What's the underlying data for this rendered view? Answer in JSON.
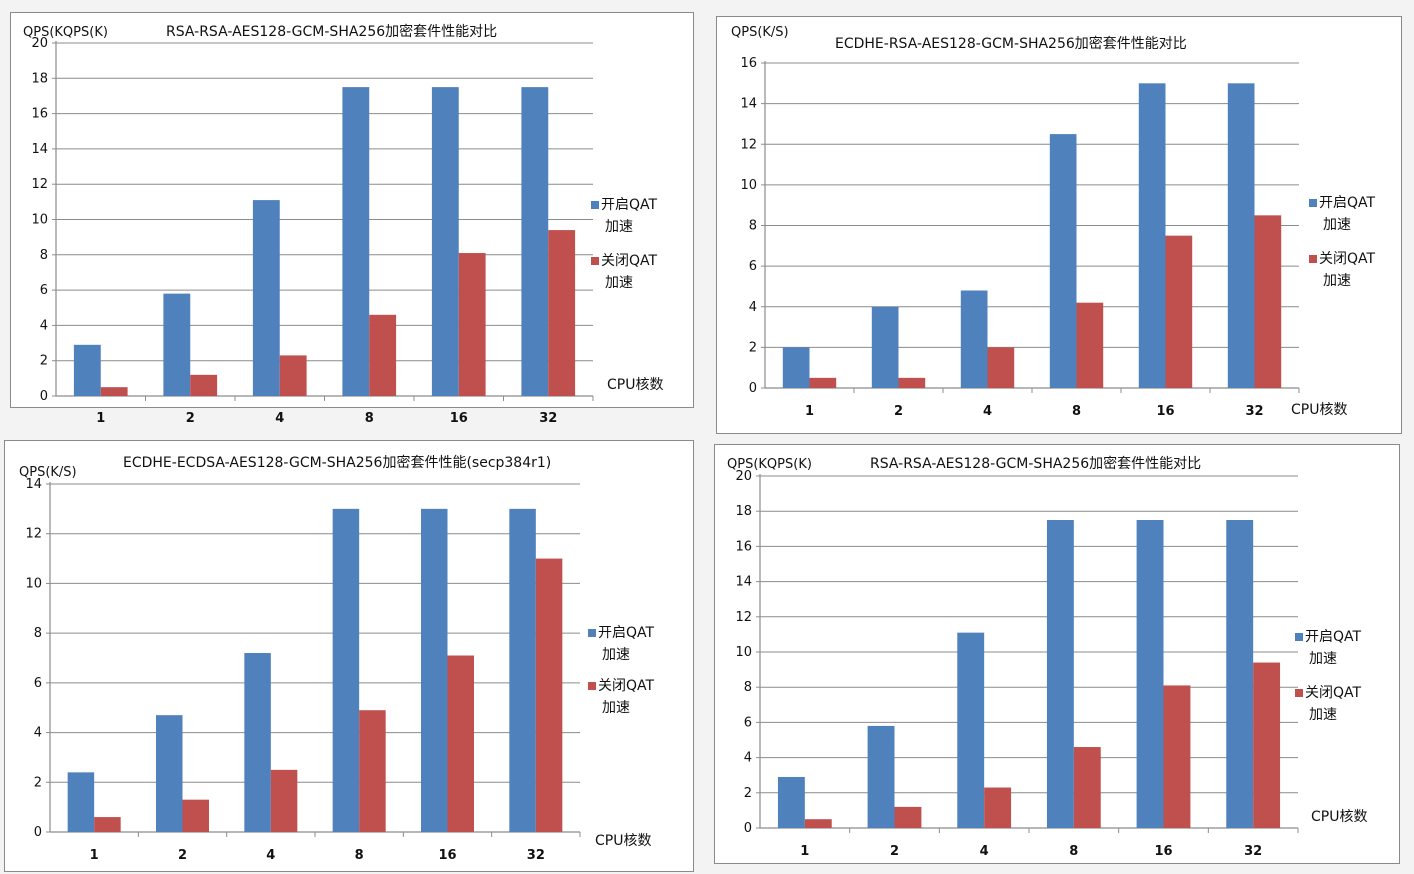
{
  "chart_data": [
    {
      "type": "bar",
      "title": "RSA-RSA-AES128-GCM-SHA256加密套件性能对比",
      "ylabel": "QPS(KQPS(K)",
      "xlabel": "CPU核数",
      "categories": [
        "1",
        "2",
        "4",
        "8",
        "16",
        "32"
      ],
      "ylim": [
        0,
        20
      ],
      "yticks": [
        0,
        2,
        4,
        6,
        8,
        10,
        12,
        14,
        16,
        18,
        20
      ],
      "legend": "right",
      "grid": true,
      "series": [
        {
          "name": "开启QAT加速",
          "color": "#4F81BD",
          "values": [
            2.9,
            5.8,
            11.1,
            17.5,
            17.5,
            17.5
          ]
        },
        {
          "name": "关闭QAT加速",
          "color": "#C0504D",
          "values": [
            0.5,
            1.2,
            2.3,
            4.6,
            8.1,
            9.4
          ]
        }
      ]
    },
    {
      "type": "bar",
      "title": "ECDHE-RSA-AES128-GCM-SHA256加密套件性能对比",
      "ylabel": "QPS(K/S)",
      "xlabel": "CPU核数",
      "categories": [
        "1",
        "2",
        "4",
        "8",
        "16",
        "32"
      ],
      "ylim": [
        0,
        16
      ],
      "yticks": [
        0,
        2,
        4,
        6,
        8,
        10,
        12,
        14,
        16
      ],
      "legend": "right",
      "grid": true,
      "series": [
        {
          "name": "开启QAT加速",
          "color": "#4F81BD",
          "values": [
            2.0,
            4.0,
            4.8,
            12.5,
            15.0,
            15.0
          ]
        },
        {
          "name": "关闭QAT加速",
          "color": "#C0504D",
          "values": [
            0.5,
            0.5,
            2.0,
            4.2,
            7.5,
            8.5
          ]
        }
      ]
    },
    {
      "type": "bar",
      "title": "ECDHE-ECDSA-AES128-GCM-SHA256加密套件性能(secp384r1)",
      "ylabel": "QPS(K/S)",
      "xlabel": "CPU核数",
      "categories": [
        "1",
        "2",
        "4",
        "8",
        "16",
        "32"
      ],
      "ylim": [
        0,
        14
      ],
      "yticks": [
        0,
        2,
        4,
        6,
        8,
        10,
        12,
        14
      ],
      "legend": "right",
      "grid": true,
      "series": [
        {
          "name": "开启QAT加速",
          "color": "#4F81BD",
          "values": [
            2.4,
            4.7,
            7.2,
            13.0,
            13.0,
            13.0
          ]
        },
        {
          "name": "关闭QAT加速",
          "color": "#C0504D",
          "values": [
            0.6,
            1.3,
            2.5,
            4.9,
            7.1,
            11.0
          ]
        }
      ]
    },
    {
      "type": "bar",
      "title": "RSA-RSA-AES128-GCM-SHA256加密套件性能对比",
      "ylabel": "QPS(KQPS(K)",
      "xlabel": "CPU核数",
      "categories": [
        "1",
        "2",
        "4",
        "8",
        "16",
        "32"
      ],
      "ylim": [
        0,
        20
      ],
      "yticks": [
        0,
        2,
        4,
        6,
        8,
        10,
        12,
        14,
        16,
        18,
        20
      ],
      "legend": "right",
      "grid": true,
      "series": [
        {
          "name": "开启QAT加速",
          "color": "#4F81BD",
          "values": [
            2.9,
            5.8,
            11.1,
            17.5,
            17.5,
            17.5
          ]
        },
        {
          "name": "关闭QAT加速",
          "color": "#C0504D",
          "values": [
            0.5,
            1.2,
            2.3,
            4.6,
            8.1,
            9.4
          ]
        }
      ]
    }
  ]
}
